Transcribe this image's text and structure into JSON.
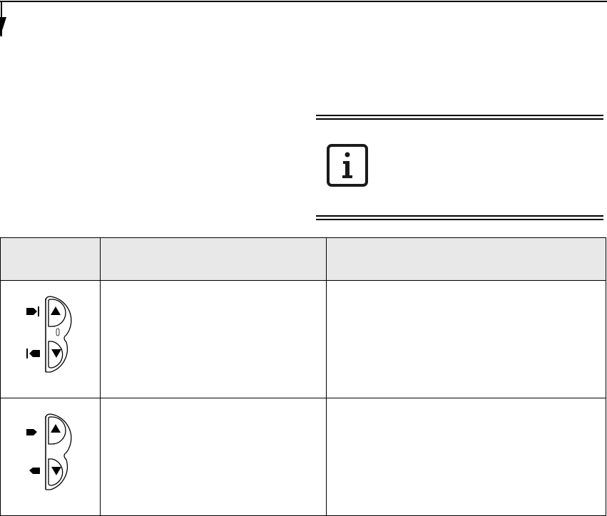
{
  "page": {
    "accent_color": "#000000",
    "header_fill": "#e8e8e8"
  },
  "note": {
    "icon": "info-icon"
  },
  "table": {
    "headers": [
      "",
      "",
      ""
    ],
    "rows": [
      {
        "icon": "scroll-button-page-up-down-icon",
        "description": "",
        "function": ""
      },
      {
        "icon": "scroll-button-arrow-icon",
        "description": "",
        "function": ""
      }
    ]
  }
}
